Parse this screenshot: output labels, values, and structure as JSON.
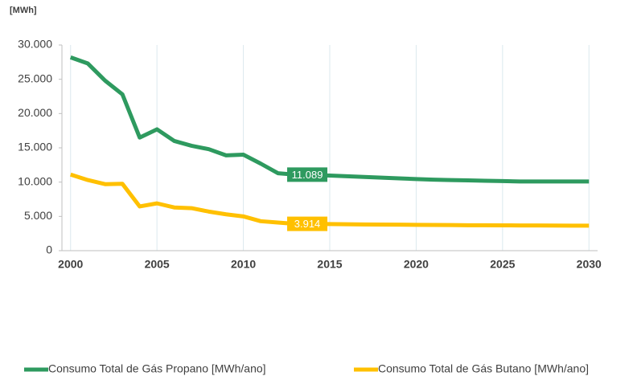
{
  "chart_data": {
    "type": "line",
    "unit_label": "[MWh]",
    "x": [
      2000,
      2001,
      2002,
      2003,
      2004,
      2005,
      2006,
      2007,
      2008,
      2009,
      2010,
      2011,
      2012,
      2013,
      2014,
      2015,
      2016,
      2017,
      2018,
      2019,
      2020,
      2021,
      2022,
      2023,
      2024,
      2025,
      2026,
      2027,
      2028,
      2029,
      2030
    ],
    "series": [
      {
        "name": "Consumo Total de Gás Propano [MWh/ano]",
        "color": "#2e9a5f",
        "values": [
          28200,
          27300,
          24800,
          22800,
          16500,
          17700,
          16000,
          15300,
          14800,
          13900,
          14000,
          12700,
          11300,
          11089,
          11000,
          10950,
          10850,
          10750,
          10650,
          10550,
          10450,
          10350,
          10300,
          10250,
          10200,
          10150,
          10100,
          10100,
          10100,
          10100,
          10100
        ],
        "value_labels": [
          null,
          null,
          null,
          null,
          null,
          null,
          null,
          null,
          null,
          null,
          null,
          null,
          null,
          "11.089",
          null,
          null,
          null,
          null,
          null,
          null,
          null,
          null,
          null,
          null,
          null,
          null,
          null,
          null,
          null,
          null,
          null
        ]
      },
      {
        "name": "Consumo Total de Gás Butano [MWh/ano]",
        "color": "#ffc000",
        "values": [
          11100,
          10300,
          9700,
          9750,
          6450,
          6900,
          6300,
          6200,
          5700,
          5300,
          5000,
          4300,
          4100,
          3914,
          3900,
          3880,
          3850,
          3830,
          3810,
          3790,
          3770,
          3750,
          3730,
          3710,
          3700,
          3690,
          3680,
          3670,
          3660,
          3650,
          3650
        ],
        "value_labels": [
          null,
          null,
          null,
          null,
          null,
          null,
          null,
          null,
          null,
          null,
          null,
          null,
          null,
          "3.914",
          null,
          null,
          null,
          null,
          null,
          null,
          null,
          null,
          null,
          null,
          null,
          null,
          null,
          null,
          null,
          null,
          null
        ]
      }
    ],
    "xlim": [
      1999.5,
      2030.5
    ],
    "xticks": [
      2000,
      2005,
      2010,
      2015,
      2020,
      2025,
      2030
    ],
    "ylim": [
      0,
      30000
    ],
    "yticks": [
      0,
      {
        "value": 5000,
        "label": "5.000"
      },
      {
        "value": 10000,
        "label": "10.000"
      },
      {
        "value": 15000,
        "label": "15.000"
      },
      {
        "value": 20000,
        "label": "20.000"
      },
      {
        "value": 25000,
        "label": "25.000"
      },
      {
        "value": 30000,
        "label": "30.000"
      }
    ],
    "grid": "x"
  }
}
